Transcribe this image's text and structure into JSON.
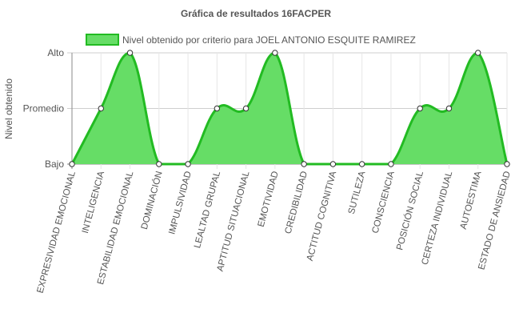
{
  "chart_data": {
    "type": "area",
    "title": "Gráfica de resultados 16FACPER",
    "ylabel": "Nivel obtenido",
    "xlabel": "",
    "y_categories": [
      "Bajo",
      "Promedio",
      "Alto"
    ],
    "categories": [
      "EXPRESIVIDAD EMOCIONAL",
      "INTELIGENCIA",
      "ESTABILIDAD EMOCIONAL",
      "DOMINACIÓN",
      "IMPULSIVIDAD",
      "LEALTAD GRUPAL",
      "APTITUD SITUACIONAL",
      "EMOTIVIDAD",
      "CREDIBILIDAD",
      "ACTITUD COGNITIVA",
      "SUTILEZA",
      "CONSCIENCIA",
      "POSICIÓN SOCIAL",
      "CERTEZA INDIVIDUAL",
      "AUTOESTIMA",
      "ESTADO DE ANSIEDAD"
    ],
    "series": [
      {
        "name": "Nivel obtenido por criterio para JOEL ANTONIO ESQUITE RAMIREZ",
        "values": [
          "Bajo",
          "Promedio",
          "Alto",
          "Bajo",
          "Bajo",
          "Promedio",
          "Promedio",
          "Alto",
          "Bajo",
          "Bajo",
          "Bajo",
          "Bajo",
          "Promedio",
          "Promedio",
          "Alto",
          "Bajo"
        ],
        "fill_color": "#66dd66",
        "line_color": "#22bb22"
      }
    ],
    "legend_position": "top",
    "grid": true
  }
}
